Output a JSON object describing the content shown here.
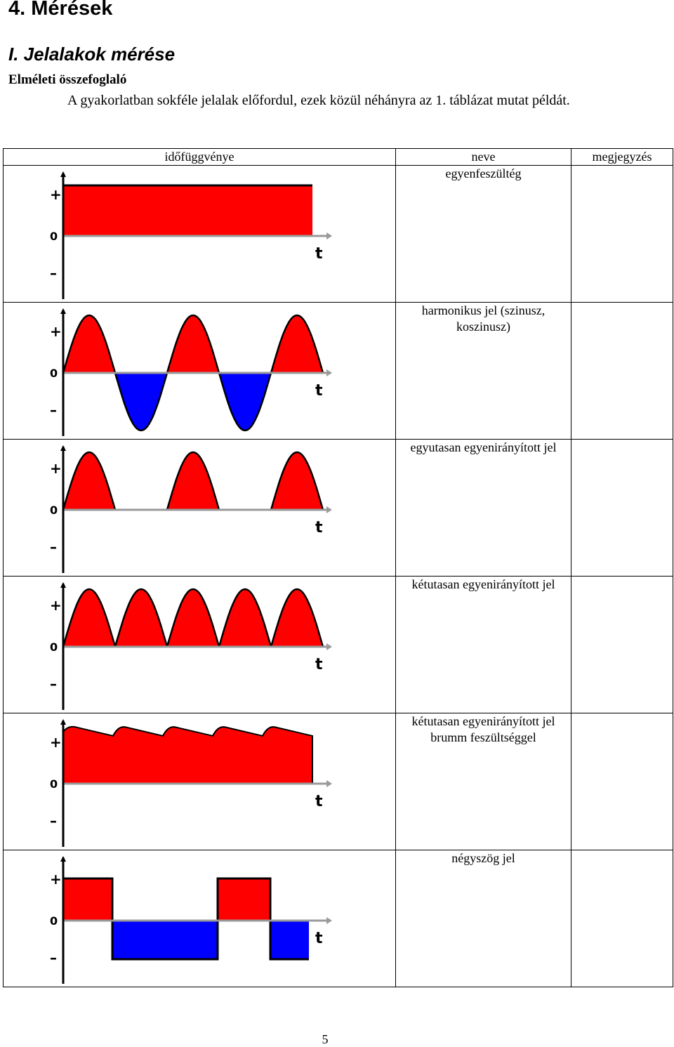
{
  "heading_main": "4. Mérések",
  "heading_section": "I. Jelalakok mérése",
  "heading_sub": "Elméleti összefoglaló",
  "intro_text": "A gyakorlatban sokféle jelalak előfordul, ezek közül néhányra az 1. táblázat mutat példát.",
  "table": {
    "headers": [
      "időfüggvénye",
      "neve",
      "megjegyzés"
    ],
    "rows": [
      {
        "name": "egyenfeszültég",
        "note": ""
      },
      {
        "name": "harmonikus jel (szinusz, koszinusz)",
        "note": ""
      },
      {
        "name": "egyutasan egyenirányított jel",
        "note": ""
      },
      {
        "name": "kétutasan egyenirányított jel",
        "note": ""
      },
      {
        "name": "kétutasan egyenirányított jel brumm feszültséggel",
        "note": ""
      },
      {
        "name": "négyszög jel",
        "note": ""
      }
    ]
  },
  "axis_labels": {
    "plus": "+",
    "zero": "0",
    "minus": "–",
    "time": "t"
  },
  "colors": {
    "positive": "#ff0000",
    "negative": "#0000ff",
    "axis": "#000000",
    "baseline": "#9a9a9a"
  },
  "page_number": "5"
}
